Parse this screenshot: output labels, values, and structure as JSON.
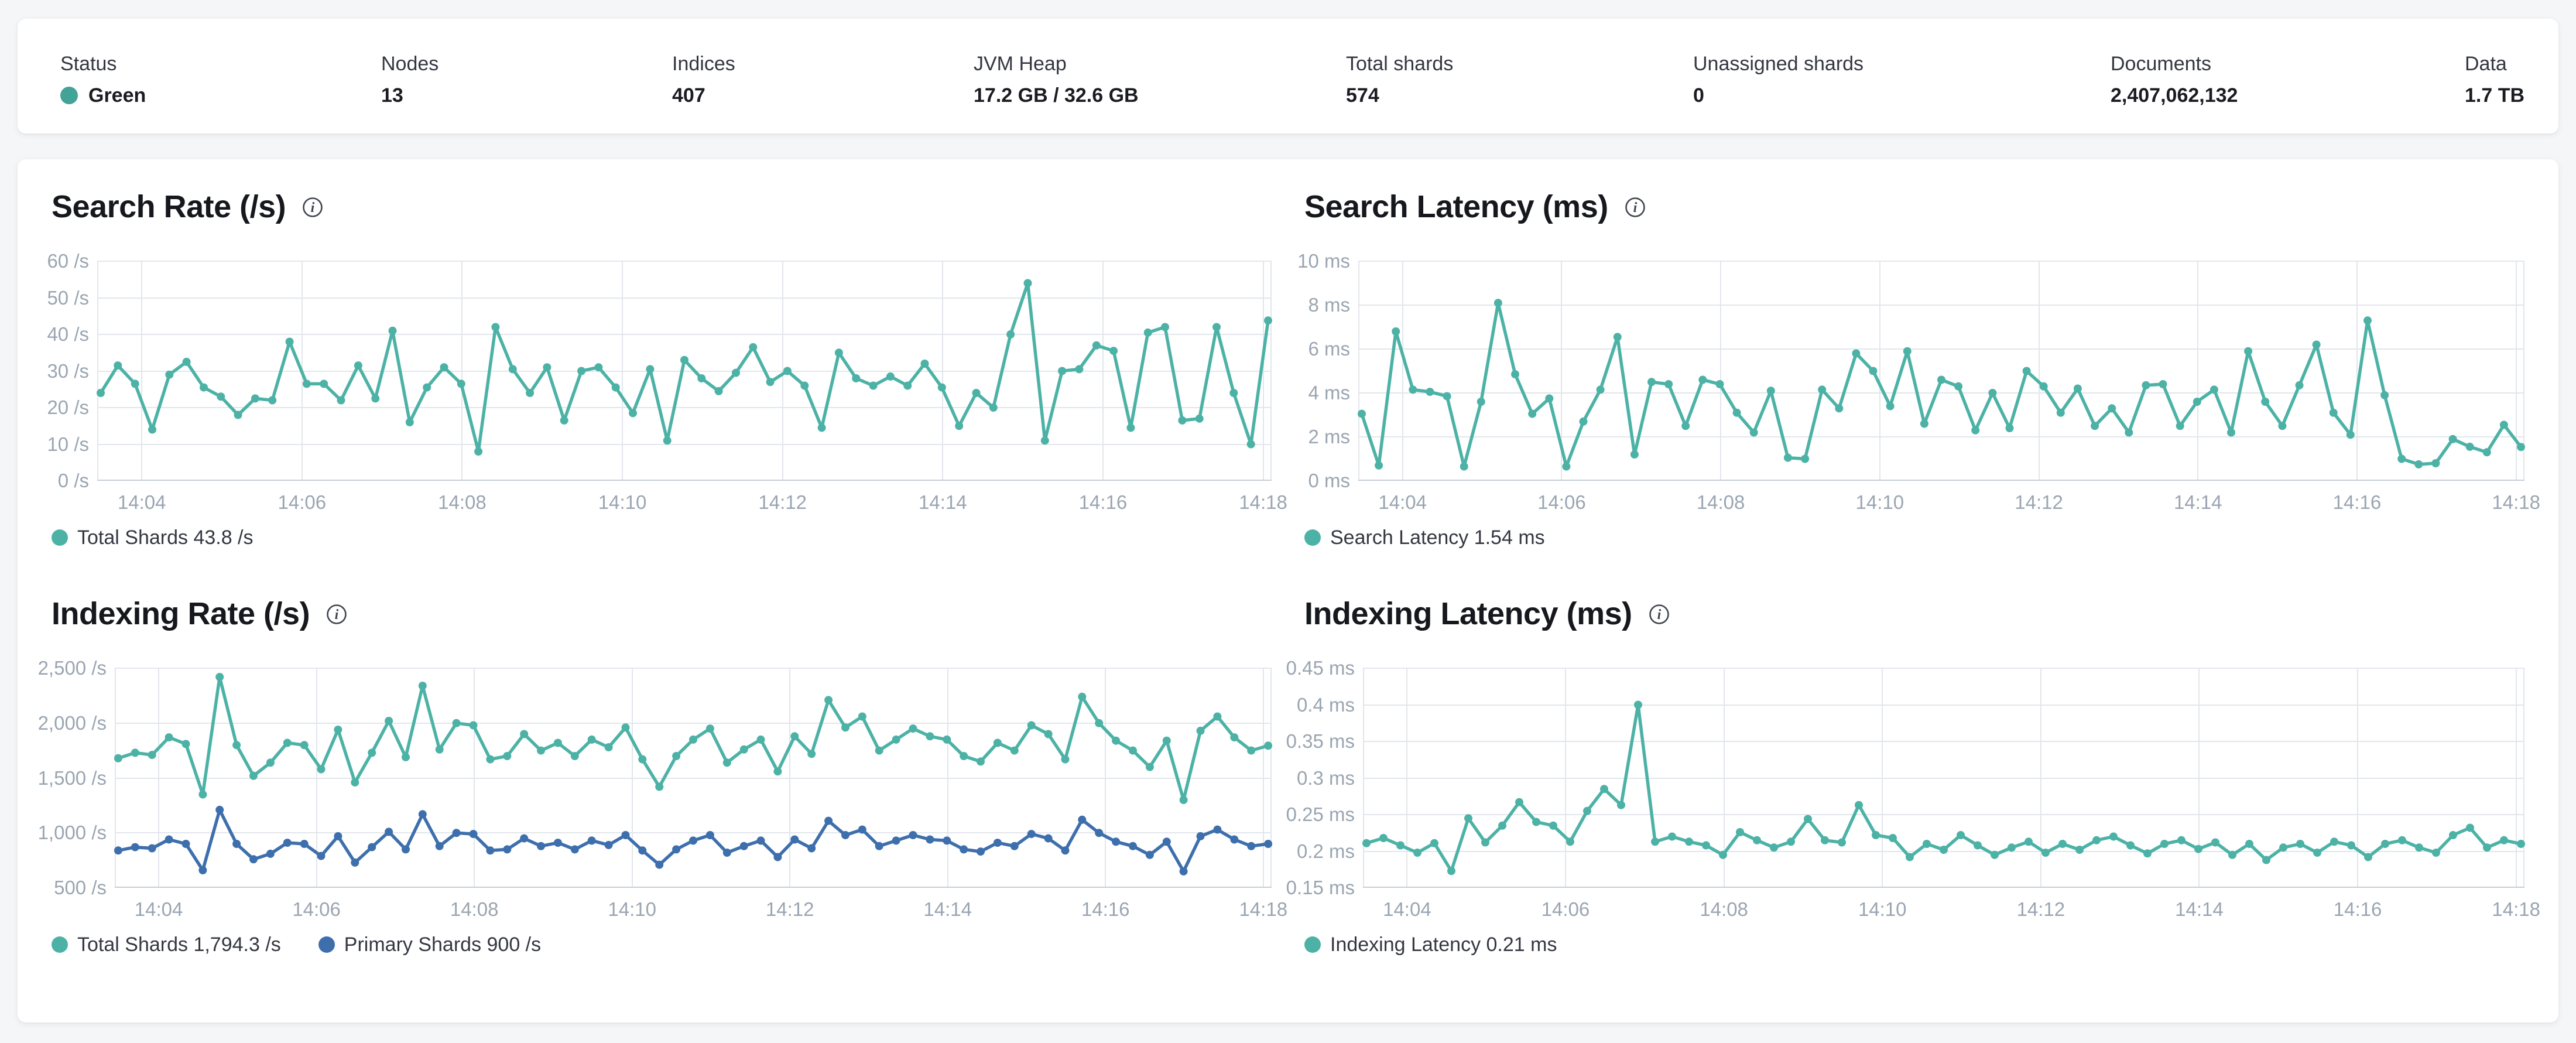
{
  "header": {
    "status_color": "#42A396",
    "stats": [
      {
        "label": "Status",
        "value": "Green"
      },
      {
        "label": "Nodes",
        "value": "13"
      },
      {
        "label": "Indices",
        "value": "407"
      },
      {
        "label": "JVM Heap",
        "value": "17.2 GB / 32.6 GB"
      },
      {
        "label": "Total shards",
        "value": "574"
      },
      {
        "label": "Unassigned shards",
        "value": "0"
      },
      {
        "label": "Documents",
        "value": "2,407,062,132"
      },
      {
        "label": "Data",
        "value": "1.7 TB"
      }
    ]
  },
  "colors": {
    "teal": "#4DB2A6",
    "blue": "#3E6FAD",
    "axis_text": "#9aa5b1",
    "gridline": "#e2e6eb",
    "axis_line": "#c8ced6"
  },
  "chart_data": [
    {
      "type": "line",
      "title": "Search Rate (/s)",
      "x_ticks": [
        "14:04",
        "14:06",
        "14:08",
        "14:10",
        "14:12",
        "14:14",
        "14:16",
        "14:18"
      ],
      "ylim": [
        0,
        60
      ],
      "y_tick_labels": [
        "60 /s",
        "50 /s",
        "40 /s",
        "30 /s",
        "20 /s",
        "10 /s",
        "0 /s"
      ],
      "grid": true,
      "legend_position": "bottom",
      "series": [
        {
          "name": "Total Shards",
          "latest": "43.8 /s",
          "legend_label": "Total Shards 43.8 /s",
          "color": "#4DB2A6",
          "values": [
            24,
            31.5,
            26.5,
            14,
            29,
            32.5,
            25.5,
            23,
            18,
            22.5,
            22,
            38,
            26.5,
            26.5,
            22,
            31.5,
            22.5,
            41,
            16,
            25.5,
            31,
            26.5,
            8,
            42,
            30.5,
            24,
            31,
            16.5,
            30,
            31,
            25.5,
            18.5,
            30.5,
            11,
            33,
            28,
            24.5,
            29.5,
            36.5,
            27,
            30,
            26,
            14.5,
            35,
            28,
            26,
            28.5,
            26,
            32,
            25.5,
            15,
            24,
            20,
            40,
            54,
            11,
            30,
            30.5,
            37,
            35.5,
            14.5,
            40.5,
            42,
            16.5,
            17,
            42,
            24,
            10,
            43.8
          ]
        }
      ]
    },
    {
      "type": "line",
      "title": "Search Latency (ms)",
      "x_ticks": [
        "14:04",
        "14:06",
        "14:08",
        "14:10",
        "14:12",
        "14:14",
        "14:16",
        "14:18"
      ],
      "ylim": [
        0,
        10
      ],
      "y_tick_labels": [
        "10 ms",
        "8 ms",
        "6 ms",
        "4 ms",
        "2 ms",
        "0 ms"
      ],
      "grid": true,
      "legend_position": "bottom",
      "series": [
        {
          "name": "Search Latency",
          "latest": "1.54 ms",
          "legend_label": "Search Latency 1.54 ms",
          "color": "#4DB2A6",
          "values": [
            3.05,
            0.7,
            6.8,
            4.15,
            4.05,
            3.85,
            0.65,
            3.6,
            8.1,
            4.85,
            3.05,
            3.75,
            0.65,
            2.7,
            4.15,
            6.55,
            1.2,
            4.5,
            4.4,
            2.5,
            4.6,
            4.4,
            3.1,
            2.2,
            4.1,
            1.05,
            1.0,
            4.15,
            3.3,
            5.8,
            5.0,
            3.4,
            5.9,
            2.6,
            4.6,
            4.3,
            2.3,
            4.0,
            2.4,
            5.0,
            4.3,
            3.1,
            4.2,
            2.5,
            3.3,
            2.2,
            4.35,
            4.4,
            2.5,
            3.6,
            4.15,
            2.2,
            5.9,
            3.6,
            2.5,
            4.35,
            6.2,
            3.1,
            2.1,
            7.3,
            3.9,
            1.0,
            0.75,
            0.8,
            1.9,
            1.55,
            1.3,
            2.55,
            1.54
          ]
        }
      ]
    },
    {
      "type": "line",
      "title": "Indexing Rate (/s)",
      "x_ticks": [
        "14:04",
        "14:06",
        "14:08",
        "14:10",
        "14:12",
        "14:14",
        "14:16",
        "14:18"
      ],
      "ylim": [
        500,
        2500
      ],
      "y_tick_labels": [
        "2,500 /s",
        "2,000 /s",
        "1,500 /s",
        "1,000 /s",
        "500 /s"
      ],
      "grid": true,
      "legend_position": "bottom",
      "series": [
        {
          "name": "Total Shards",
          "latest": "1,794.3 /s",
          "legend_label": "Total Shards 1,794.3 /s",
          "color": "#4DB2A6",
          "values": [
            1680,
            1730,
            1710,
            1870,
            1810,
            1350,
            2420,
            1800,
            1520,
            1640,
            1820,
            1800,
            1580,
            1940,
            1460,
            1730,
            2020,
            1690,
            2340,
            1760,
            2000,
            1980,
            1670,
            1700,
            1900,
            1750,
            1820,
            1700,
            1850,
            1780,
            1960,
            1670,
            1420,
            1700,
            1850,
            1950,
            1640,
            1760,
            1850,
            1560,
            1880,
            1720,
            2210,
            1960,
            2060,
            1750,
            1850,
            1950,
            1880,
            1850,
            1700,
            1650,
            1820,
            1750,
            1980,
            1900,
            1670,
            2240,
            2000,
            1840,
            1750,
            1600,
            1840,
            1300,
            1930,
            2060,
            1870,
            1750,
            1794.3
          ]
        },
        {
          "name": "Primary Shards",
          "latest": "900 /s",
          "legend_label": "Primary Shards 900 /s",
          "color": "#3E6FAD",
          "values": [
            840,
            870,
            860,
            940,
            900,
            660,
            1210,
            900,
            760,
            810,
            910,
            900,
            790,
            970,
            730,
            870,
            1010,
            850,
            1170,
            880,
            1000,
            990,
            840,
            850,
            950,
            880,
            910,
            850,
            930,
            890,
            980,
            840,
            710,
            850,
            930,
            980,
            820,
            880,
            930,
            780,
            940,
            860,
            1110,
            980,
            1030,
            880,
            930,
            980,
            940,
            930,
            850,
            830,
            910,
            880,
            990,
            950,
            840,
            1120,
            1000,
            920,
            880,
            800,
            920,
            650,
            970,
            1030,
            940,
            880,
            900
          ]
        }
      ]
    },
    {
      "type": "line",
      "title": "Indexing Latency (ms)",
      "x_ticks": [
        "14:04",
        "14:06",
        "14:08",
        "14:10",
        "14:12",
        "14:14",
        "14:16",
        "14:18"
      ],
      "ylim": [
        0.15,
        0.45
      ],
      "y_tick_labels": [
        "0.45 ms",
        "0.4 ms",
        "0.35 ms",
        "0.3 ms",
        "0.25 ms",
        "0.2 ms",
        "0.15 ms"
      ],
      "grid": true,
      "legend_position": "bottom",
      "series": [
        {
          "name": "Indexing Latency",
          "latest": "0.21 ms",
          "legend_label": "Indexing Latency 0.21 ms",
          "color": "#4DB2A6",
          "values": [
            0.211,
            0.218,
            0.208,
            0.198,
            0.211,
            0.173,
            0.245,
            0.212,
            0.235,
            0.267,
            0.24,
            0.235,
            0.213,
            0.255,
            0.285,
            0.263,
            0.4,
            0.213,
            0.22,
            0.213,
            0.208,
            0.195,
            0.226,
            0.215,
            0.205,
            0.213,
            0.244,
            0.215,
            0.212,
            0.263,
            0.222,
            0.218,
            0.192,
            0.21,
            0.202,
            0.222,
            0.208,
            0.195,
            0.205,
            0.213,
            0.198,
            0.21,
            0.202,
            0.215,
            0.22,
            0.208,
            0.197,
            0.21,
            0.215,
            0.203,
            0.212,
            0.195,
            0.21,
            0.188,
            0.205,
            0.21,
            0.198,
            0.213,
            0.208,
            0.192,
            0.21,
            0.215,
            0.205,
            0.198,
            0.222,
            0.232,
            0.205,
            0.215,
            0.21
          ]
        }
      ]
    }
  ]
}
